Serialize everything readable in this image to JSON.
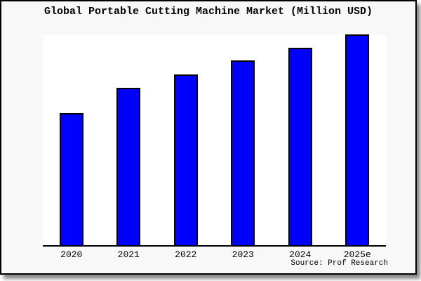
{
  "chart_data": {
    "type": "bar",
    "title": "Global Portable Cutting Machine Market (Million USD)",
    "categories": [
      "2020",
      "2021",
      "2022",
      "2023",
      "2024",
      "2025e"
    ],
    "values_relative_pct": [
      62.7,
      74.7,
      81.0,
      87.7,
      93.7,
      100.0
    ],
    "value_axis": {
      "visible": false,
      "tick_labels": "none shown",
      "unit_from_title": "Million USD"
    },
    "grid": false,
    "legend": "none",
    "source": "Source: Prof Research",
    "layout": {
      "bar_order": "ascending left to right",
      "x_axis_line": true,
      "y_axis_line": false
    }
  },
  "colors": {
    "bar_fill": "#0000ff",
    "bar_border": "#000000",
    "plot_background": "#ffffff",
    "figure_background": "#f8f8f8",
    "frame_border": "#000000",
    "shadow": "#8a8a8a",
    "text": "#000000"
  }
}
